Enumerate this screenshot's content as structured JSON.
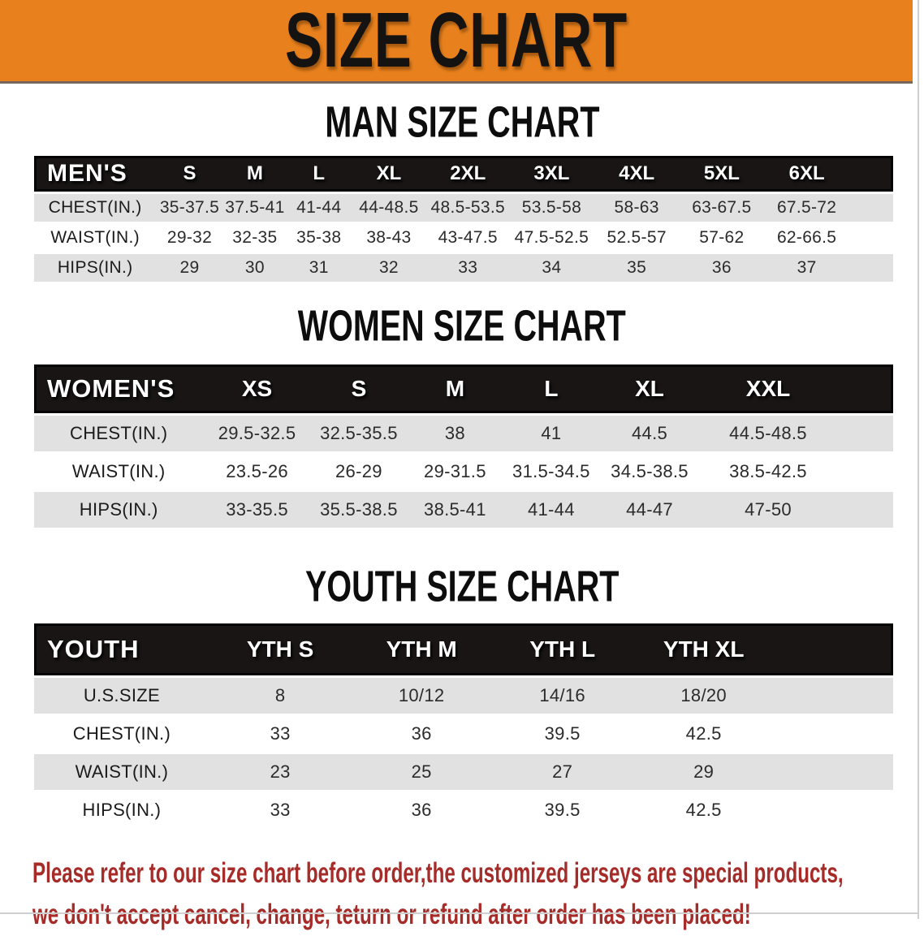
{
  "banner": {
    "title": "SIZE CHART",
    "bg_color": "#E8811D"
  },
  "sections": [
    {
      "heading": "MAN SIZE CHART",
      "corner": "MEN'S",
      "columns": [
        "S",
        "M",
        "L",
        "XL",
        "2XL",
        "3XL",
        "4XL",
        "5XL",
        "6XL"
      ],
      "rows": [
        {
          "label": "CHEST(IN.)",
          "values": [
            "35-37.5",
            "37.5-41",
            "41-44",
            "44-48.5",
            "48.5-53.5",
            "53.5-58",
            "58-63",
            "63-67.5",
            "67.5-72"
          ]
        },
        {
          "label": "WAIST(IN.)",
          "values": [
            "29-32",
            "32-35",
            "35-38",
            "38-43",
            "43-47.5",
            "47.5-52.5",
            "52.5-57",
            "57-62",
            "62-66.5"
          ]
        },
        {
          "label": "HIPS(IN.)",
          "values": [
            "29",
            "30",
            "31",
            "32",
            "33",
            "34",
            "35",
            "36",
            "37"
          ]
        }
      ]
    },
    {
      "heading": "WOMEN SIZE CHART",
      "corner": "WOMEN'S",
      "columns": [
        "XS",
        "S",
        "M",
        "L",
        "XL",
        "XXL"
      ],
      "rows": [
        {
          "label": "CHEST(IN.)",
          "values": [
            "29.5-32.5",
            "32.5-35.5",
            "38",
            "41",
            "44.5",
            "44.5-48.5"
          ]
        },
        {
          "label": "WAIST(IN.)",
          "values": [
            "23.5-26",
            "26-29",
            "29-31.5",
            "31.5-34.5",
            "34.5-38.5",
            "38.5-42.5"
          ]
        },
        {
          "label": "HIPS(IN.)",
          "values": [
            "33-35.5",
            "35.5-38.5",
            "38.5-41",
            "41-44",
            "44-47",
            "47-50"
          ]
        }
      ]
    },
    {
      "heading": "YOUTH SIZE CHART",
      "corner": "YOUTH",
      "columns": [
        "YTH S",
        "YTH M",
        "YTH L",
        "YTH XL"
      ],
      "rows": [
        {
          "label": "U.S.SIZE",
          "values": [
            "8",
            "10/12",
            "14/16",
            "18/20"
          ]
        },
        {
          "label": "CHEST(IN.)",
          "values": [
            "33",
            "36",
            "39.5",
            "42.5"
          ]
        },
        {
          "label": "WAIST(IN.)",
          "values": [
            "23",
            "25",
            "27",
            "29"
          ]
        },
        {
          "label": "HIPS(IN.)",
          "values": [
            "33",
            "36",
            "39.5",
            "42.5"
          ]
        }
      ]
    }
  ],
  "footnote": {
    "color": "#A62C29",
    "line1": "Please refer to our size chart before order,the customized jerseys are special products,",
    "line2": "we don't accept cancel, change, teturn or refund after order has been placed!"
  }
}
